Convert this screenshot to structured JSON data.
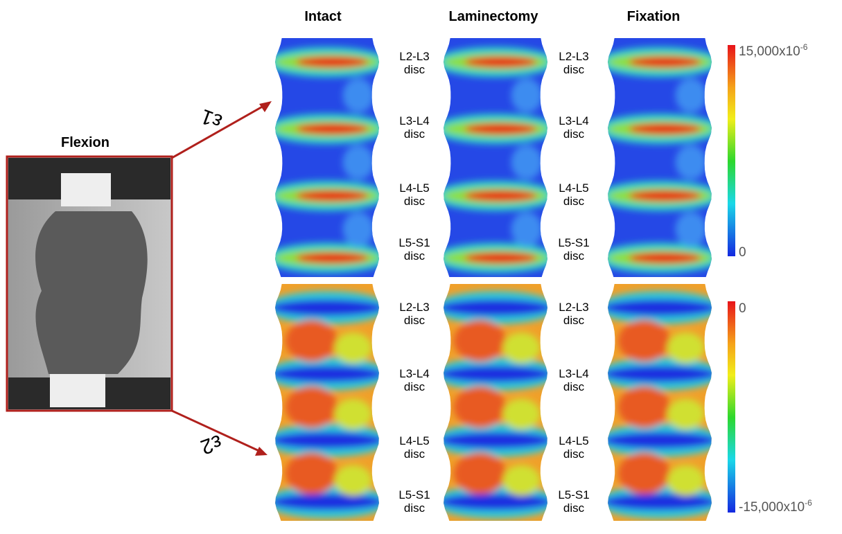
{
  "header": {
    "columns": [
      "Intact",
      "Laminectomy",
      "Fixation"
    ]
  },
  "photo": {
    "label": "Flexion"
  },
  "strain_labels": [
    "ε1",
    "ε2"
  ],
  "disc_labels": [
    {
      "level": "L2-L3",
      "word": "disc"
    },
    {
      "level": "L3-L4",
      "word": "disc"
    },
    {
      "level": "L4-L5",
      "word": "disc"
    },
    {
      "level": "L5-S1",
      "word": "disc"
    }
  ],
  "colorbars": [
    {
      "top": {
        "text": "15,000x10",
        "exp": "-6"
      },
      "bottom": {
        "text": "0"
      }
    },
    {
      "top": {
        "text": "0"
      },
      "bottom": {
        "text": "-15,000x10",
        "exp": "-6"
      }
    }
  ]
}
